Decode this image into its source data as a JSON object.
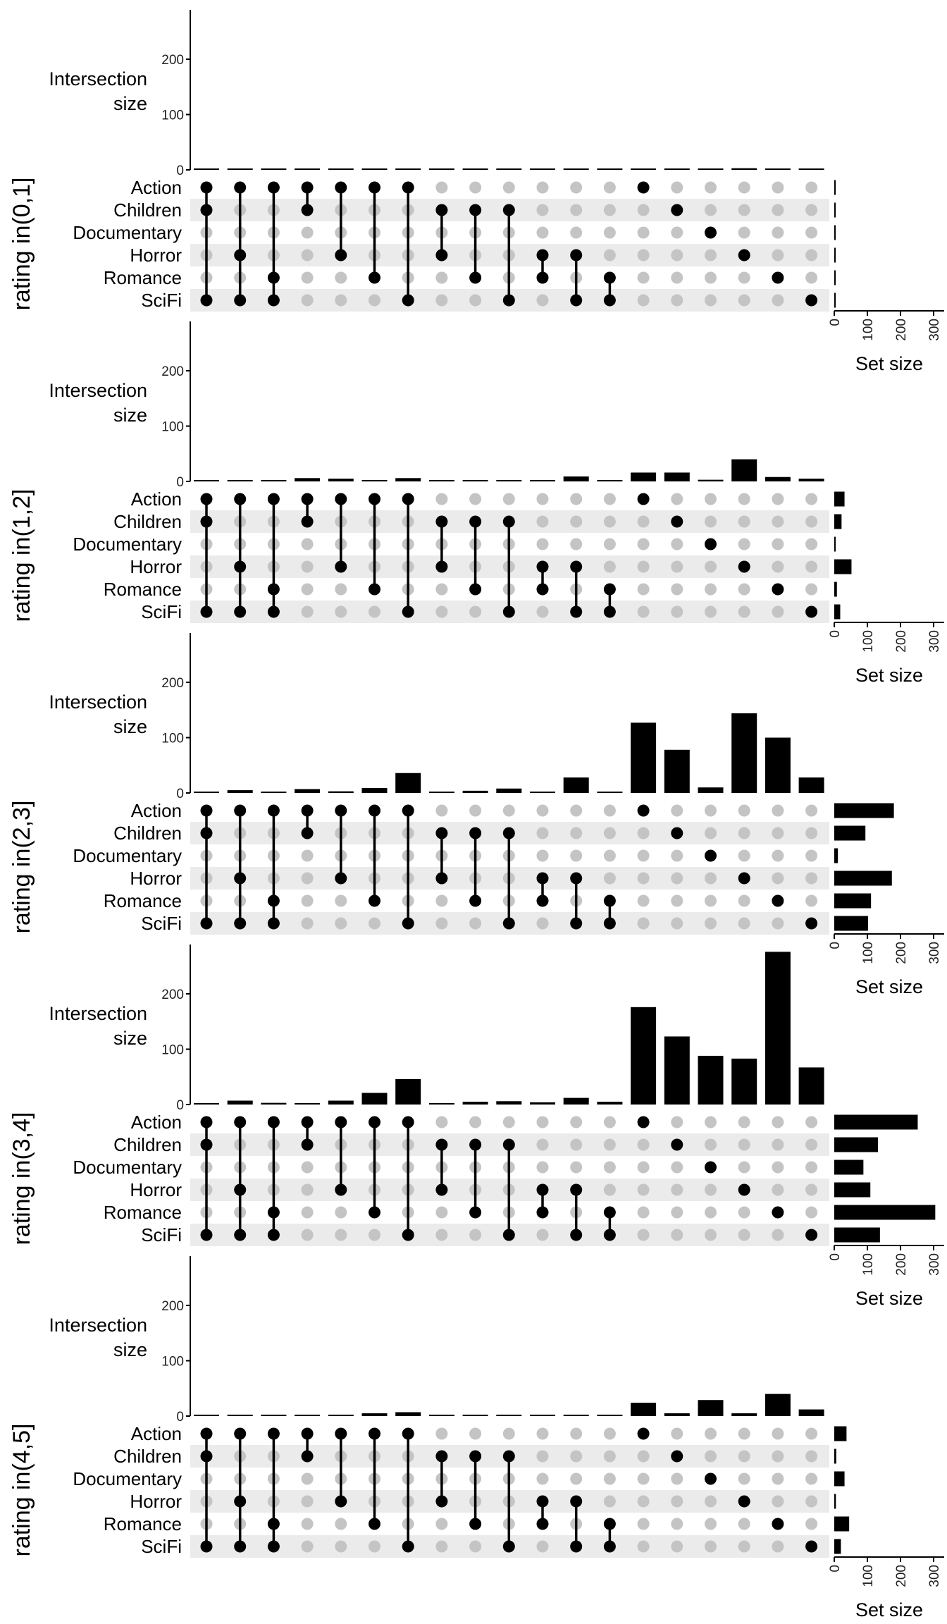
{
  "chart_data": {
    "type": "upset",
    "title": "",
    "y_axis_label_lines": [
      "Intersection",
      "size"
    ],
    "set_size_label": "Set size",
    "ylim": [
      0,
      290
    ],
    "y_ticks": [
      "0",
      "100",
      "200"
    ],
    "set_size_xlim": [
      0,
      310
    ],
    "set_size_ticks": [
      "0",
      "100",
      "200",
      "300"
    ],
    "sets": [
      "Action",
      "Children",
      "Documentary",
      "Horror",
      "Romance",
      "SciFi"
    ],
    "intersections": [
      [
        "Action",
        "Children",
        "SciFi"
      ],
      [
        "Action",
        "Horror",
        "SciFi"
      ],
      [
        "Action",
        "Romance",
        "SciFi"
      ],
      [
        "Action",
        "Children"
      ],
      [
        "Action",
        "Horror"
      ],
      [
        "Action",
        "Romance"
      ],
      [
        "Action",
        "SciFi"
      ],
      [
        "Children",
        "Horror"
      ],
      [
        "Children",
        "Romance"
      ],
      [
        "Children",
        "SciFi"
      ],
      [
        "Horror",
        "Romance"
      ],
      [
        "Horror",
        "SciFi"
      ],
      [
        "Romance",
        "SciFi"
      ],
      [
        "Action"
      ],
      [
        "Children"
      ],
      [
        "Documentary"
      ],
      [
        "Horror"
      ],
      [
        "Romance"
      ],
      [
        "SciFi"
      ]
    ],
    "panels": [
      {
        "label": "rating in(0,1]",
        "intersection_sizes": [
          1,
          1,
          1,
          1,
          1,
          1,
          1,
          1,
          1,
          1,
          1,
          1,
          1,
          1,
          2,
          2,
          3,
          2,
          1
        ],
        "set_sizes": [
          1,
          1,
          1,
          1,
          1,
          1
        ]
      },
      {
        "label": "rating in(1,2]",
        "intersection_sizes": [
          1,
          1,
          1,
          6,
          5,
          1,
          6,
          1,
          1,
          1,
          1,
          9,
          1,
          16,
          16,
          3,
          40,
          8,
          5
        ],
        "set_sizes": [
          31,
          22,
          3,
          52,
          8,
          18
        ]
      },
      {
        "label": "rating in(2,3]",
        "intersection_sizes": [
          1,
          5,
          1,
          7,
          3,
          9,
          36,
          1,
          4,
          8,
          1,
          28,
          2,
          127,
          78,
          10,
          144,
          100,
          28
        ],
        "set_sizes": [
          180,
          94,
          11,
          174,
          111,
          102
        ]
      },
      {
        "label": "rating in(3,4]",
        "intersection_sizes": [
          2,
          7,
          3,
          2,
          7,
          21,
          46,
          2,
          5,
          6,
          4,
          12,
          5,
          176,
          123,
          88,
          83,
          276,
          67
        ],
        "set_sizes": [
          252,
          132,
          88,
          109,
          305,
          138
        ]
      },
      {
        "label": "rating in(4,5]",
        "intersection_sizes": [
          1,
          2,
          2,
          1,
          2,
          5,
          7,
          1,
          1,
          1,
          1,
          1,
          1,
          24,
          5,
          29,
          5,
          40,
          12
        ],
        "set_sizes": [
          37,
          6,
          31,
          5,
          45,
          20
        ]
      }
    ],
    "colors": {
      "bar": "#000000",
      "dot_active": "#000000",
      "dot_inactive": "#c4c4c4",
      "stripe": "#ebebeb"
    }
  }
}
